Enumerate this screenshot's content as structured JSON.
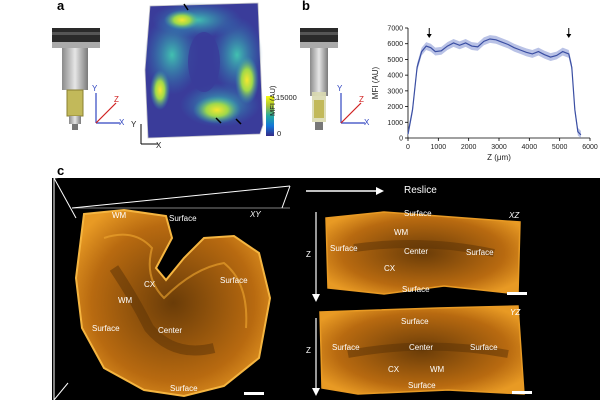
{
  "panels": {
    "a": "a",
    "b": "b",
    "c": "c"
  },
  "panel_a": {
    "axis_y": "Y",
    "axis_z": "Z",
    "axis_x": "X",
    "map_axis_y": "Y",
    "map_axis_x": "X",
    "colorbar_max": "15000",
    "colorbar_min": "0",
    "colorbar_label": "MFI (AU)"
  },
  "panel_b": {
    "axis_y": "Y",
    "axis_z": "Z",
    "axis_x": "X"
  },
  "chart_data": {
    "type": "line",
    "xlabel": "Z (μm)",
    "ylabel": "MFI (AU)",
    "xlim": [
      0,
      6000
    ],
    "ylim": [
      0,
      7000
    ],
    "xticks": [
      0,
      1000,
      2000,
      3000,
      4000,
      5000,
      6000
    ],
    "yticks": [
      0,
      1000,
      2000,
      3000,
      4000,
      5000,
      6000,
      7000
    ],
    "x": [
      0,
      150,
      300,
      450,
      600,
      750,
      900,
      1100,
      1300,
      1500,
      1700,
      1900,
      2100,
      2300,
      2500,
      2700,
      2900,
      3100,
      3300,
      3500,
      3700,
      3900,
      4100,
      4300,
      4500,
      4700,
      4900,
      5100,
      5300,
      5400,
      5500,
      5600,
      5700
    ],
    "y": [
      250,
      1800,
      4500,
      5500,
      5850,
      5750,
      5500,
      5550,
      5850,
      6050,
      5900,
      6050,
      5850,
      5800,
      6150,
      6300,
      6250,
      6100,
      5950,
      5750,
      5600,
      5450,
      5350,
      5500,
      5300,
      5150,
      5250,
      5500,
      5350,
      4500,
      1800,
      400,
      200
    ],
    "arrows_at_x": [
      700,
      5300
    ],
    "color": "#3b4fa3",
    "band_color": "#a7b3e0"
  },
  "panel_c": {
    "reslice_label": "Reslice",
    "xy": {
      "plane": "XY",
      "labels": {
        "surface_top": "Surface",
        "surface_left": "Surface",
        "surface_right": "Surface",
        "surface_bottom": "Surface",
        "cx": "CX",
        "wm": "WM",
        "wm_top": "WM",
        "center": "Center"
      }
    },
    "xz": {
      "plane": "XZ",
      "axis": "Z",
      "labels": {
        "surface_top": "Surface",
        "surface_left": "Surface",
        "surface_right": "Surface",
        "surface_bottom": "Surface",
        "wm": "WM",
        "center": "Center",
        "cx": "CX"
      }
    },
    "yz": {
      "plane": "YZ",
      "axis": "Z",
      "labels": {
        "surface_top": "Surface",
        "surface_left": "Surface",
        "surface_right": "Surface",
        "surface_bottom": "Surface",
        "center": "Center",
        "cx": "CX",
        "wm": "WM"
      }
    }
  }
}
